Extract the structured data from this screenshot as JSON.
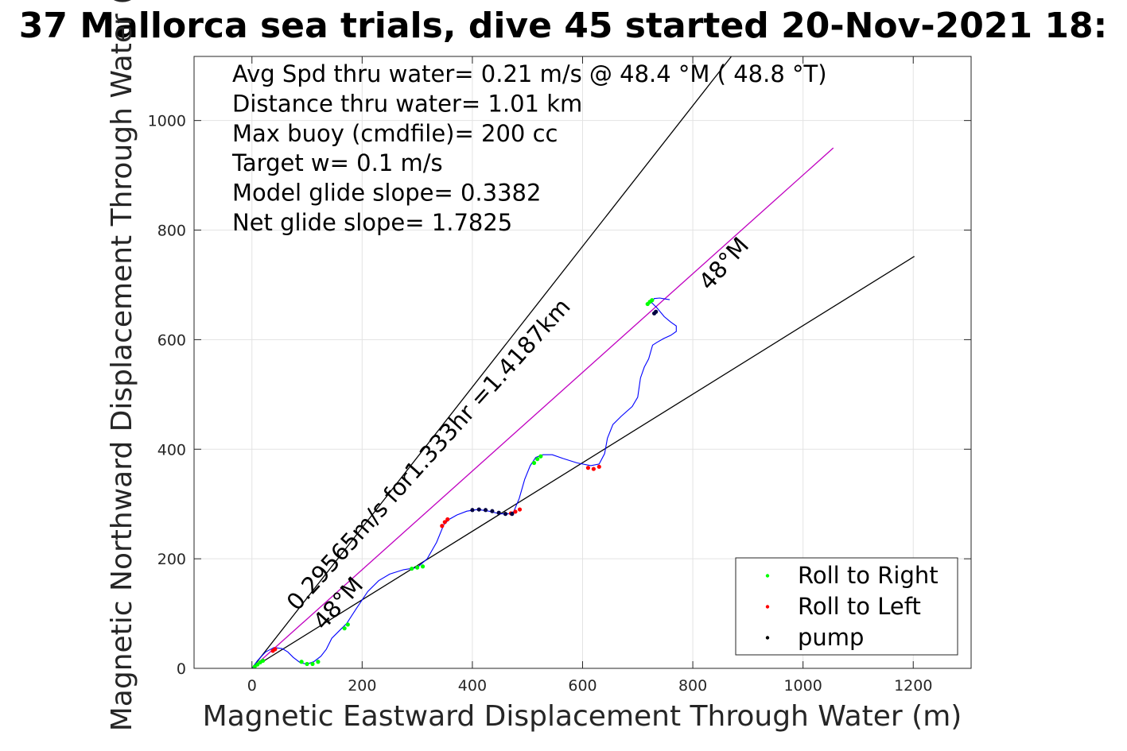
{
  "chart_data": {
    "type": "line",
    "title": "37 Mallorca sea trials, dive 45 started 20-Nov-2021 18:",
    "xlabel": "Magnetic Eastward Displacement Through Water (m)",
    "ylabel": "Magnetic Northward Displacement Through Water (",
    "xlim": [
      -105,
      1305
    ],
    "ylim": [
      0,
      1117
    ],
    "xticks": [
      0,
      200,
      400,
      600,
      800,
      1000,
      1200
    ],
    "yticks": [
      0,
      200,
      400,
      600,
      800,
      1000
    ],
    "xtick_labels": [
      "0",
      "200",
      "400",
      "600",
      "800",
      "1000",
      "1200"
    ],
    "ytick_labels": [
      "0",
      "200",
      "400",
      "600",
      "800",
      "1000"
    ],
    "grid": true,
    "info_lines": [
      "Avg Spd thru water=  0.21 m/s @  48.4 °M ( 48.8 °T)",
      "Distance thru water=  1.01 km",
      "Max buoy (cmdfile)= 200 cc",
      "Target w= 0.1 m/s",
      "Model glide slope= 0.3382",
      "Net glide slope= 1.7825"
    ],
    "annotations": [
      {
        "text": "0.29565m/s for1.333hr =1.4187km",
        "x": 82,
        "y": 103,
        "angle": 48
      },
      {
        "text": "48°M",
        "x": 130,
        "y": 68,
        "angle": 48
      },
      {
        "text": "48°M",
        "x": 830,
        "y": 688,
        "angle": 48
      }
    ],
    "reference_lines": [
      {
        "name": "",
        "color": "#000000",
        "x": [
          0,
          870
        ],
        "y": [
          0,
          1117
        ]
      },
      {
        "name": "",
        "color": "#000000",
        "x": [
          0,
          1202
        ],
        "y": [
          0,
          752
        ]
      },
      {
        "name": "",
        "color": "#c000c0",
        "x": [
          0,
          1055
        ],
        "y": [
          0,
          950
        ]
      }
    ],
    "series": [
      {
        "name": "",
        "type": "track",
        "color": "#0000ff",
        "x": [
          0,
          10,
          25,
          40,
          55,
          65,
          75,
          88,
          100,
          112,
          125,
          135,
          145,
          160,
          172,
          190,
          210,
          230,
          250,
          275,
          300,
          318,
          335,
          348,
          358,
          372,
          390,
          410,
          430,
          450,
          465,
          475,
          485,
          495,
          505,
          515,
          528,
          545,
          565,
          590,
          615,
          630,
          640,
          645,
          655,
          670,
          690,
          700,
          705,
          712,
          720,
          727,
          735,
          747,
          760,
          770,
          770,
          760,
          748,
          735,
          725,
          730,
          740,
          752,
          758
        ],
        "y": [
          0,
          14,
          30,
          38,
          36,
          30,
          20,
          10,
          8,
          12,
          22,
          35,
          55,
          70,
          82,
          110,
          140,
          160,
          172,
          180,
          184,
          200,
          230,
          262,
          272,
          280,
          287,
          290,
          287,
          282,
          282,
          286,
          310,
          345,
          370,
          385,
          390,
          390,
          383,
          375,
          370,
          373,
          392,
          420,
          445,
          460,
          478,
          495,
          530,
          550,
          565,
          590,
          595,
          602,
          608,
          615,
          625,
          632,
          642,
          658,
          668,
          675,
          676,
          674,
          673
        ]
      },
      {
        "name": "Roll to Right",
        "type": "points",
        "color": "#00ff00",
        "x": [
          5,
          10,
          15,
          20,
          90,
          100,
          110,
          120,
          168,
          174,
          290,
          300,
          310,
          512,
          518,
          524,
          718,
          722,
          726
        ],
        "y": [
          3,
          7,
          11,
          14,
          12,
          8,
          8,
          12,
          73,
          80,
          182,
          184,
          186,
          375,
          382,
          387,
          665,
          669,
          672
        ]
      },
      {
        "name": "Roll to Left",
        "type": "points",
        "color": "#ff0000",
        "x": [
          38,
          42,
          345,
          350,
          355,
          470,
          478,
          486,
          610,
          620,
          630
        ],
        "y": [
          32,
          35,
          260,
          267,
          272,
          283,
          286,
          290,
          366,
          364,
          368
        ]
      },
      {
        "name": "pump",
        "type": "points",
        "color": "#000040",
        "x": [
          400,
          412,
          424,
          436,
          448,
          460,
          472,
          730,
          733
        ],
        "y": [
          289,
          290,
          289,
          287,
          284,
          282,
          282,
          648,
          651
        ]
      }
    ],
    "legend": {
      "position": "bottom-right",
      "entries": [
        {
          "label": "Roll to Right",
          "color": "#00ff00"
        },
        {
          "label": "Roll to Left",
          "color": "#ff0000"
        },
        {
          "label": "pump",
          "color": "#000000"
        }
      ]
    }
  }
}
